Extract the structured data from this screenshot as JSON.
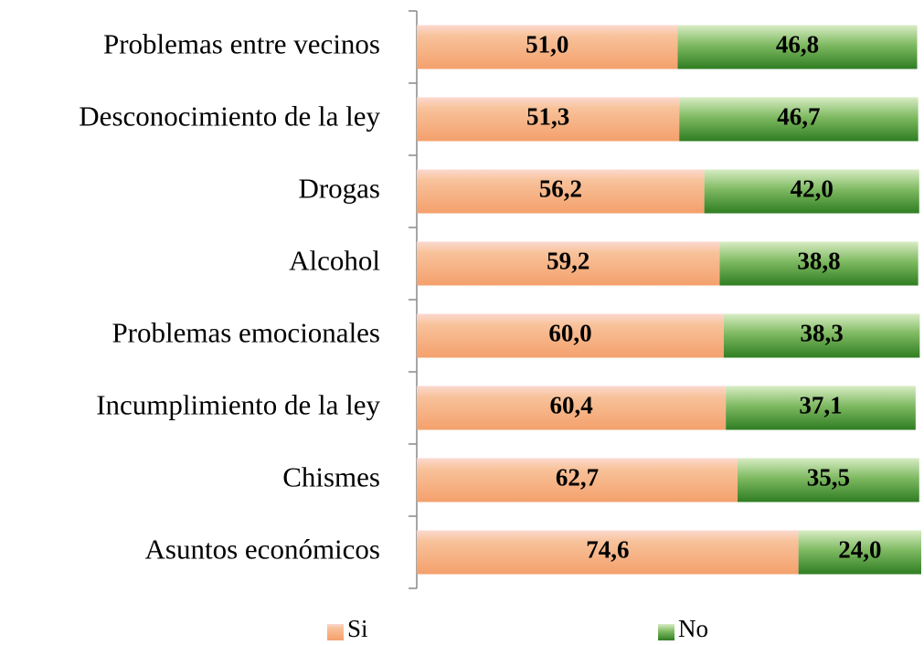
{
  "chart_data": {
    "type": "stacked_barh",
    "categories": [
      "Problemas entre vecinos",
      "Desconocimiento de la ley",
      "Drogas",
      "Alcohol",
      "Problemas emocionales",
      "Incumplimiento de la ley",
      "Chismes",
      "Asuntos económicos"
    ],
    "series": [
      {
        "name": "Si",
        "color": "#f4a06c",
        "values": [
          51.0,
          51.3,
          56.2,
          59.2,
          60.0,
          60.4,
          62.7,
          74.6
        ],
        "value_labels": [
          "51,0",
          "51,3",
          "56,2",
          "59,2",
          "60,0",
          "60,4",
          "62,7",
          "74,6"
        ]
      },
      {
        "name": "No",
        "color": "#3c8a2e",
        "values": [
          46.8,
          46.7,
          42.0,
          38.8,
          38.3,
          37.1,
          35.5,
          24.0
        ],
        "value_labels": [
          "46,8",
          "46,7",
          "42,0",
          "38,8",
          "38,3",
          "37,1",
          "35,5",
          "24,0"
        ]
      }
    ],
    "legend": "bottom"
  }
}
